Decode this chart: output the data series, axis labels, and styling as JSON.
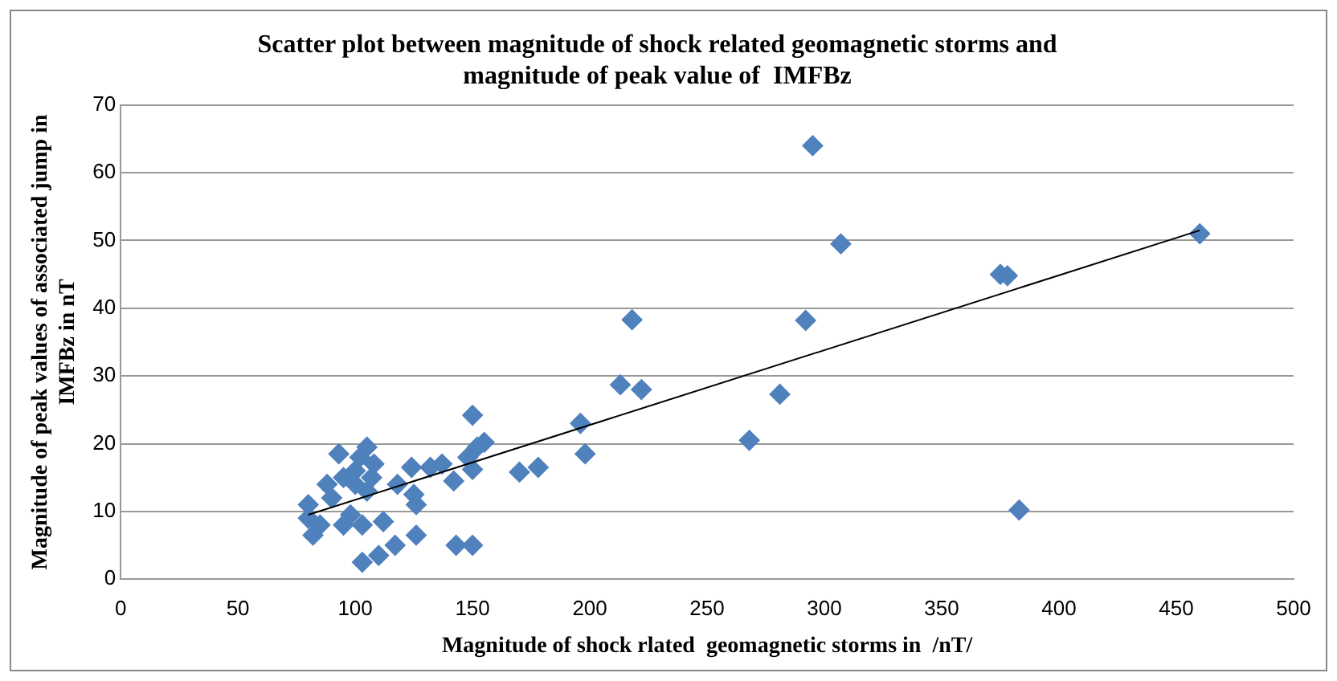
{
  "chart_data": {
    "type": "scatter",
    "title": "Scatter plot between magnitude of shock related geomagnetic storms and magnitude of peak value of  IMFBz",
    "xlabel": "Magnitude of shock rlated  geomagnetic storms in  /nT/",
    "ylabel": "Magnitude of peak values of associated jump in IMFBz in nT",
    "xlim": [
      0,
      500
    ],
    "xticks": [
      0,
      50,
      100,
      150,
      200,
      250,
      300,
      350,
      400,
      450,
      500
    ],
    "ylim": [
      0,
      70
    ],
    "yticks": [
      0,
      10,
      20,
      30,
      40,
      50,
      60,
      70
    ],
    "grid": "y",
    "legend": false,
    "marker": "diamond",
    "series": [
      {
        "color": "#4f81bd",
        "x": [
          80,
          80,
          82,
          85,
          88,
          90,
          93,
          95,
          95,
          98,
          100,
          100,
          102,
          103,
          103,
          105,
          105,
          107,
          108,
          110,
          112,
          117,
          118,
          122,
          124,
          125,
          126,
          126,
          132,
          137,
          142,
          143,
          148,
          150,
          150,
          150,
          152,
          155,
          170,
          178,
          196,
          198,
          213,
          218,
          222,
          268,
          281,
          292,
          295,
          307,
          375,
          378,
          383,
          460
        ],
        "values": [
          9,
          11,
          6.5,
          8,
          14,
          12,
          18.5,
          15,
          8,
          9.5,
          16,
          14,
          18,
          8,
          2.5,
          19.5,
          13,
          15,
          17,
          3.5,
          8.5,
          5,
          14,
          null,
          16.5,
          12.5,
          11,
          6.5,
          16.5,
          17,
          14.5,
          5,
          18,
          24.2,
          5,
          16.2,
          19.5,
          20.2,
          15.8,
          16.5,
          23,
          18.5,
          28.7,
          38.3,
          28,
          20.5,
          27.3,
          38.2,
          64,
          49.5,
          45,
          44.8,
          10.2,
          51
        ]
      },
      {
        "type": "line",
        "color": "#000000",
        "marker": "none",
        "x": [
          80,
          460
        ],
        "values": [
          9.5,
          51.5
        ]
      }
    ]
  }
}
